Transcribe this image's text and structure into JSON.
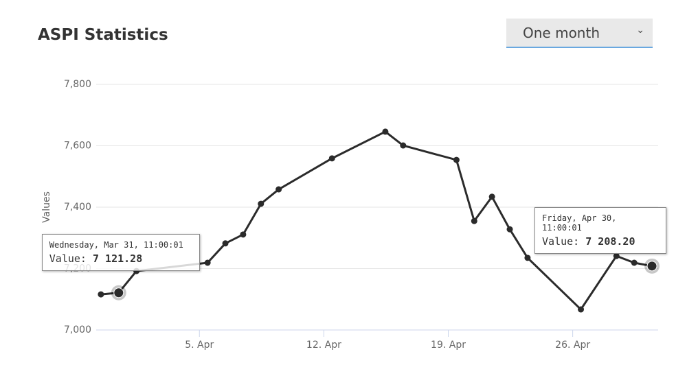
{
  "header": {
    "title": "ASPI Statistics"
  },
  "dropdown": {
    "selected": "One month"
  },
  "chart_data": {
    "type": "line",
    "y_label": "Values",
    "x": [
      "Mar 30",
      "Mar 31",
      "Apr 1",
      "Apr 5",
      "Apr 6",
      "Apr 7",
      "Apr 8",
      "Apr 9",
      "Apr 12",
      "Apr 15",
      "Apr 16",
      "Apr 19",
      "Apr 20",
      "Apr 21",
      "Apr 22",
      "Apr 23",
      "Apr 26",
      "Apr 28",
      "Apr 29",
      "Apr 30"
    ],
    "values": [
      7116,
      7121.28,
      7192,
      7219,
      7282,
      7311,
      7411,
      7458,
      7559,
      7646,
      7601,
      7554,
      7355,
      7434,
      7328,
      7235,
      7067,
      7241,
      7219,
      7208.2
    ],
    "color": "#2b2b2b",
    "xlim": [
      "Mar 30",
      "Apr 30"
    ],
    "xticks": [
      {
        "value": "Apr 5",
        "label": "5. Apr"
      },
      {
        "value": "Apr 12",
        "label": "12. Apr"
      },
      {
        "value": "Apr 19",
        "label": "19. Apr"
      },
      {
        "value": "Apr 26",
        "label": "26. Apr"
      }
    ],
    "ylim": [
      7000,
      7800
    ],
    "yticks": [
      {
        "value": 7000,
        "label": "7,000"
      },
      {
        "value": 7200,
        "label": "7,200"
      },
      {
        "value": 7400,
        "label": "7,400"
      },
      {
        "value": 7600,
        "label": "7,600"
      },
      {
        "value": 7800,
        "label": "7,800"
      }
    ],
    "grid": true,
    "annotations": [
      {
        "date": "Wednesday, Mar 31, 11:00:01",
        "label": "Value:",
        "value": 7121.28,
        "value_label": "7 121.28",
        "x": "Mar 31"
      },
      {
        "date": "Friday, Apr 30, 11:00:01",
        "label": "Value:",
        "value": 7208.2,
        "value_label": "7 208.20",
        "x": "Apr 30"
      }
    ]
  }
}
